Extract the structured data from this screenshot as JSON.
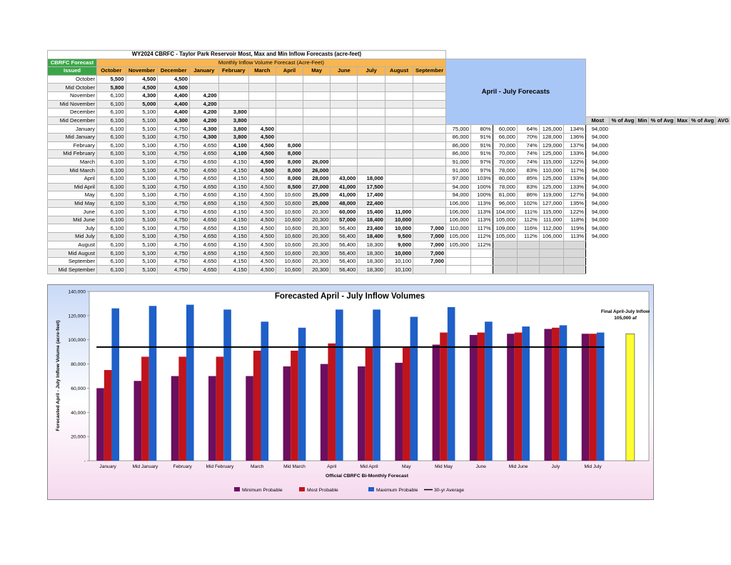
{
  "table": {
    "title": "WY2024 CBRFC - Taylor Park Reservoir Most, Max and Min Inflow Forecasts (acre-feet)",
    "issued_header_line1": "CBRFC Forecast",
    "issued_header_line2": "Issued",
    "monthly_header": "Monthly Inflow Volume Forecast (Acre-Feet)",
    "months": [
      "October",
      "November",
      "December",
      "January",
      "February",
      "March",
      "April",
      "May",
      "June",
      "July",
      "August",
      "September"
    ],
    "april_july_header": "April - July Forecasts",
    "aj_columns": [
      "Most",
      "% of Avg",
      "Min",
      "% of Avg",
      "Max",
      "% of Avg",
      "AVG"
    ],
    "rows": [
      {
        "label": "October",
        "m": [
          "5,500",
          "4,500",
          "4,500",
          "",
          "",
          "",
          "",
          "",
          "",
          "",
          "",
          ""
        ],
        "b": [
          0,
          1,
          2
        ],
        "aj": null
      },
      {
        "label": "Mid October",
        "m": [
          "5,800",
          "4,500",
          "4,500",
          "",
          "",
          "",
          "",
          "",
          "",
          "",
          "",
          ""
        ],
        "b": [
          0,
          1,
          2
        ],
        "aj": null
      },
      {
        "label": "November",
        "m": [
          "6,100",
          "4,300",
          "4,400",
          "4,200",
          "",
          "",
          "",
          "",
          "",
          "",
          "",
          ""
        ],
        "b": [
          1,
          2,
          3
        ],
        "aj": null
      },
      {
        "label": "Mid November",
        "m": [
          "6,100",
          "5,000",
          "4,400",
          "4,200",
          "",
          "",
          "",
          "",
          "",
          "",
          "",
          ""
        ],
        "b": [
          1,
          2,
          3
        ],
        "aj": null
      },
      {
        "label": "December",
        "m": [
          "6,100",
          "5,100",
          "4,400",
          "4,200",
          "3,800",
          "",
          "",
          "",
          "",
          "",
          "",
          ""
        ],
        "b": [
          2,
          3,
          4
        ],
        "aj": null
      },
      {
        "label": "Mid December",
        "m": [
          "6,100",
          "5,100",
          "4,300",
          "4,200",
          "3,800",
          "",
          "",
          "",
          "",
          "",
          "",
          ""
        ],
        "b": [
          2,
          3,
          4
        ],
        "aj": null
      },
      {
        "label": "January",
        "m": [
          "6,100",
          "5,100",
          "4,750",
          "4,300",
          "3,800",
          "4,500",
          "",
          "",
          "",
          "",
          "",
          ""
        ],
        "b": [
          3,
          4,
          5
        ],
        "aj": [
          "75,000",
          "80%",
          "60,000",
          "64%",
          "126,000",
          "134%",
          "94,000"
        ]
      },
      {
        "label": "Mid January",
        "m": [
          "6,100",
          "5,100",
          "4,750",
          "4,300",
          "3,800",
          "4,500",
          "",
          "",
          "",
          "",
          "",
          ""
        ],
        "b": [
          3,
          4,
          5
        ],
        "aj": [
          "86,000",
          "91%",
          "66,000",
          "70%",
          "128,000",
          "136%",
          "94,000"
        ]
      },
      {
        "label": "February",
        "m": [
          "6,100",
          "5,100",
          "4,750",
          "4,650",
          "4,100",
          "4,500",
          "8,000",
          "",
          "",
          "",
          "",
          ""
        ],
        "b": [
          4,
          5,
          6
        ],
        "aj": [
          "86,000",
          "91%",
          "70,000",
          "74%",
          "129,000",
          "137%",
          "94,000"
        ]
      },
      {
        "label": "Mid February",
        "m": [
          "6,100",
          "5,100",
          "4,750",
          "4,650",
          "4,100",
          "4,500",
          "8,000",
          "",
          "",
          "",
          "",
          ""
        ],
        "b": [
          4,
          5,
          6
        ],
        "aj": [
          "86,000",
          "91%",
          "70,000",
          "74%",
          "125,000",
          "133%",
          "94,000"
        ]
      },
      {
        "label": "March",
        "m": [
          "6,100",
          "5,100",
          "4,750",
          "4,650",
          "4,150",
          "4,500",
          "8,000",
          "26,000",
          "",
          "",
          "",
          ""
        ],
        "b": [
          5,
          6,
          7
        ],
        "aj": [
          "91,000",
          "97%",
          "70,000",
          "74%",
          "115,000",
          "122%",
          "94,000"
        ]
      },
      {
        "label": "Mid March",
        "m": [
          "6,100",
          "5,100",
          "4,750",
          "4,650",
          "4,150",
          "4,500",
          "8,000",
          "26,000",
          "",
          "",
          "",
          ""
        ],
        "b": [
          5,
          6,
          7
        ],
        "aj": [
          "91,000",
          "97%",
          "78,000",
          "83%",
          "110,000",
          "117%",
          "94,000"
        ]
      },
      {
        "label": "April",
        "m": [
          "6,100",
          "5,100",
          "4,750",
          "4,650",
          "4,150",
          "4,500",
          "8,000",
          "28,000",
          "43,000",
          "18,000",
          "",
          ""
        ],
        "b": [
          6,
          7,
          8,
          9
        ],
        "aj": [
          "97,000",
          "103%",
          "80,000",
          "85%",
          "125,000",
          "133%",
          "94,000"
        ]
      },
      {
        "label": "Mid April",
        "m": [
          "6,100",
          "5,100",
          "4,750",
          "4,650",
          "4,150",
          "4,500",
          "8,500",
          "27,000",
          "41,000",
          "17,500",
          "",
          ""
        ],
        "b": [
          6,
          7,
          8,
          9
        ],
        "aj": [
          "94,000",
          "100%",
          "78,000",
          "83%",
          "125,000",
          "133%",
          "94,000"
        ]
      },
      {
        "label": "May",
        "m": [
          "6,100",
          "5,100",
          "4,750",
          "4,650",
          "4,150",
          "4,500",
          "10,600",
          "25,000",
          "41,000",
          "17,400",
          "",
          ""
        ],
        "b": [
          7,
          8,
          9
        ],
        "aj": [
          "94,000",
          "100%",
          "81,000",
          "86%",
          "119,000",
          "127%",
          "94,000"
        ]
      },
      {
        "label": "Mid May",
        "m": [
          "6,100",
          "5,100",
          "4,750",
          "4,650",
          "4,150",
          "4,500",
          "10,600",
          "25,000",
          "48,000",
          "22,400",
          "",
          ""
        ],
        "b": [
          7,
          8,
          9
        ],
        "aj": [
          "106,000",
          "113%",
          "96,000",
          "102%",
          "127,000",
          "135%",
          "94,000"
        ]
      },
      {
        "label": "June",
        "m": [
          "6,100",
          "5,100",
          "4,750",
          "4,650",
          "4,150",
          "4,500",
          "10,600",
          "20,300",
          "60,000",
          "15,400",
          "11,000",
          ""
        ],
        "b": [
          8,
          9,
          10
        ],
        "aj": [
          "106,000",
          "113%",
          "104,000",
          "111%",
          "115,000",
          "122%",
          "94,000"
        ]
      },
      {
        "label": "Mid June",
        "m": [
          "6,100",
          "5,100",
          "4,750",
          "4,650",
          "4,150",
          "4,500",
          "10,600",
          "20,300",
          "57,000",
          "18,400",
          "10,000",
          ""
        ],
        "b": [
          8,
          9,
          10
        ],
        "aj": [
          "106,000",
          "113%",
          "105,000",
          "112%",
          "111,000",
          "118%",
          "94,000"
        ]
      },
      {
        "label": "July",
        "m": [
          "6,100",
          "5,100",
          "4,750",
          "4,650",
          "4,150",
          "4,500",
          "10,600",
          "20,300",
          "56,400",
          "23,400",
          "10,000",
          "7,000"
        ],
        "b": [
          9,
          10,
          11
        ],
        "aj": [
          "110,000",
          "117%",
          "109,000",
          "116%",
          "112,000",
          "119%",
          "94,000"
        ]
      },
      {
        "label": "Mid July",
        "m": [
          "6,100",
          "5,100",
          "4,750",
          "4,650",
          "4,150",
          "4,500",
          "10,600",
          "20,300",
          "56,400",
          "18,400",
          "9,500",
          "7,000"
        ],
        "b": [
          9,
          10,
          11
        ],
        "aj": [
          "105,000",
          "112%",
          "105,000",
          "112%",
          "106,000",
          "113%",
          "94,000"
        ]
      },
      {
        "label": "August",
        "m": [
          "6,100",
          "5,100",
          "4,750",
          "4,650",
          "4,150",
          "4,500",
          "10,600",
          "20,300",
          "56,400",
          "18,300",
          "9,000",
          "7,000"
        ],
        "b": [
          10,
          11
        ],
        "aj": [
          "105,000",
          "112%",
          "",
          "",
          "",
          "",
          ""
        ]
      },
      {
        "label": "Mid August",
        "m": [
          "6,100",
          "5,100",
          "4,750",
          "4,650",
          "4,150",
          "4,500",
          "10,600",
          "20,300",
          "56,400",
          "18,300",
          "10,000",
          "7,000"
        ],
        "b": [
          10,
          11
        ],
        "aj": [
          "",
          "",
          "",
          "",
          "",
          "",
          ""
        ]
      },
      {
        "label": "September",
        "m": [
          "6,100",
          "5,100",
          "4,750",
          "4,650",
          "4,150",
          "4,500",
          "10,600",
          "20,300",
          "56,400",
          "18,300",
          "10,100",
          "7,000"
        ],
        "b": [
          11
        ],
        "aj": [
          "",
          "",
          "",
          "",
          "",
          "",
          ""
        ]
      },
      {
        "label": "Mid September",
        "m": [
          "6,100",
          "5,100",
          "4,750",
          "4,650",
          "4,150",
          "4,500",
          "10,600",
          "20,300",
          "56,400",
          "18,300",
          "10,100",
          ""
        ],
        "b": [],
        "aj": [
          "",
          "",
          "",
          "",
          "",
          "",
          ""
        ]
      }
    ]
  },
  "chart_data": {
    "type": "bar",
    "title": "Forecasted April - July Inflow Volumes",
    "xlabel": "Official CBRFC Bi-Monthly Forecast",
    "ylabel": "Forecasted April - July Inflow Volume (acre-feet)",
    "ylim": [
      0,
      140000
    ],
    "yticks": [
      "-",
      "20,000",
      "40,000",
      "60,000",
      "80,000",
      "100,000",
      "120,000",
      "140,000"
    ],
    "categories": [
      "January",
      "Mid January",
      "February",
      "Mid February",
      "March",
      "Mid March",
      "April",
      "Mid April",
      "May",
      "Mid May",
      "June",
      "Mid June",
      "July",
      "Mid July"
    ],
    "series": [
      {
        "name": "Minimum Probable",
        "color": "#6b0f5e",
        "values": [
          60000,
          66000,
          70000,
          70000,
          70000,
          78000,
          80000,
          78000,
          81000,
          96000,
          104000,
          105000,
          109000,
          105000
        ]
      },
      {
        "name": "Most Probable",
        "color": "#c0141c",
        "values": [
          75000,
          86000,
          86000,
          86000,
          91000,
          91000,
          97000,
          94000,
          94000,
          106000,
          106000,
          106000,
          110000,
          105000
        ]
      },
      {
        "name": "Maximum Probable",
        "color": "#1f5fc8",
        "values": [
          126000,
          128000,
          129000,
          125000,
          115000,
          110000,
          125000,
          125000,
          119000,
          127000,
          115000,
          111000,
          112000,
          106000
        ]
      }
    ],
    "average": {
      "name": "30-yr Average",
      "value": 94000,
      "color": "#000000"
    },
    "final": {
      "value": 105000,
      "color": "#ffff33",
      "label_line1": "Final April-July Inflow",
      "label_line2": "105,000 af"
    },
    "legend_position": "bottom"
  }
}
